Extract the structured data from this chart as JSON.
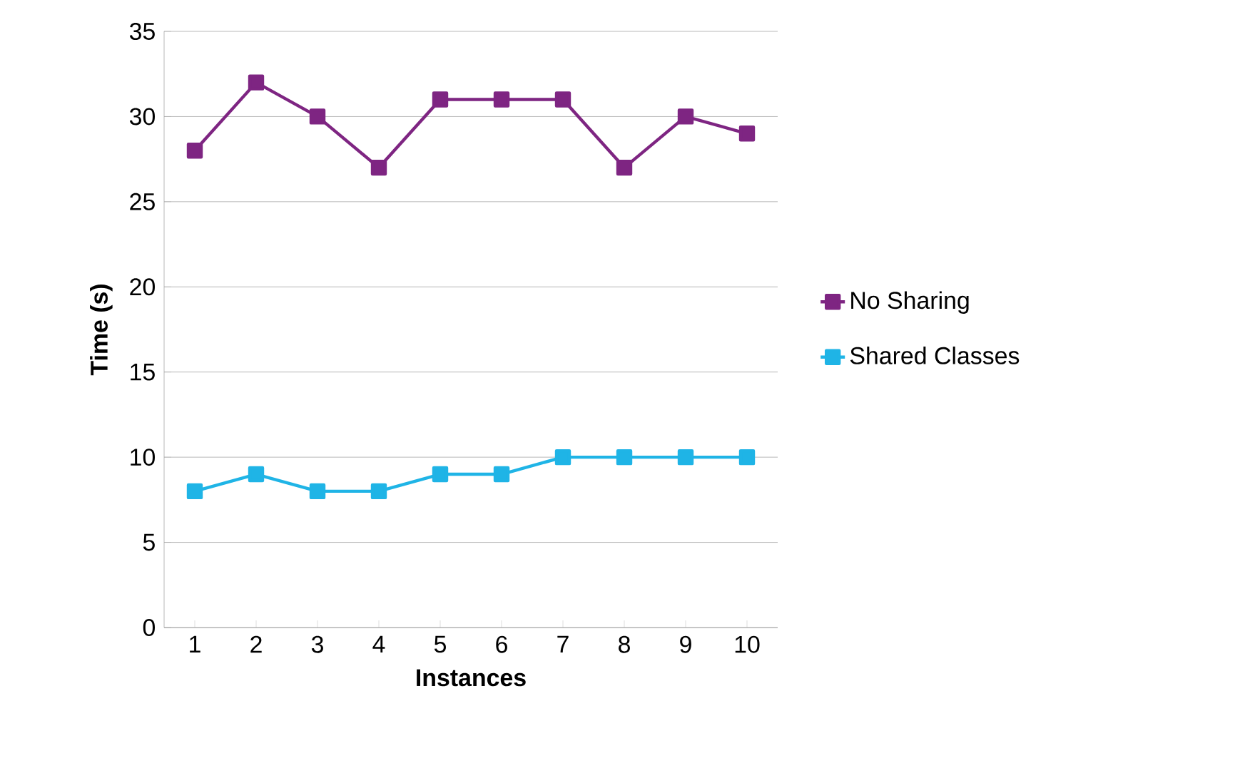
{
  "chart_data": {
    "type": "line",
    "xlabel": "Instances",
    "ylabel": "Time (s)",
    "categories": [
      "1",
      "2",
      "3",
      "4",
      "5",
      "6",
      "7",
      "8",
      "9",
      "10"
    ],
    "series": [
      {
        "name": "No Sharing",
        "color": "#7e2582",
        "values": [
          28,
          32,
          30,
          27,
          31,
          31,
          31,
          27,
          30,
          29
        ]
      },
      {
        "name": "Shared Classes",
        "color": "#1fb4e6",
        "values": [
          8,
          9,
          8,
          8,
          9,
          9,
          10,
          10,
          10,
          10
        ]
      }
    ],
    "ylim": [
      0,
      35
    ],
    "yticks": [
      0,
      5,
      10,
      15,
      20,
      25,
      30,
      35
    ],
    "grid": "y",
    "legend": "right",
    "marker": "square",
    "line_style": "solid"
  }
}
